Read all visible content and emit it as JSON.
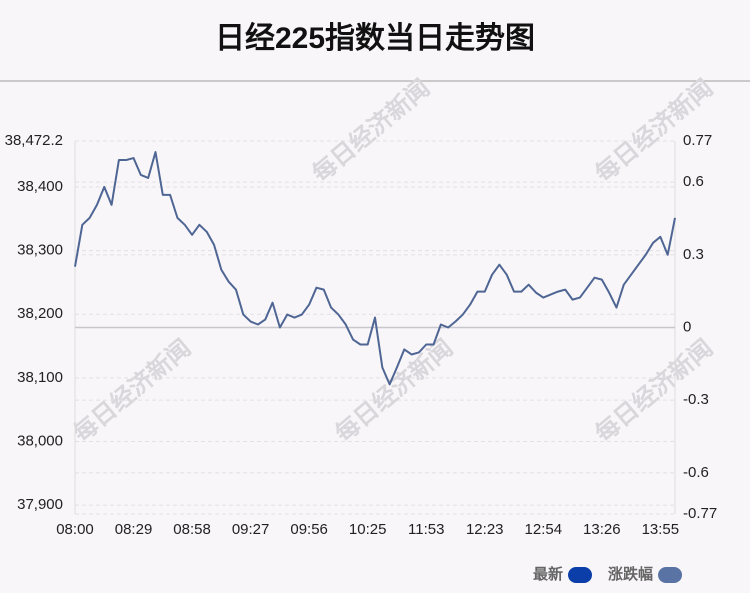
{
  "chart_data": {
    "type": "line",
    "title": "日经225指数当日走势图",
    "watermark": "每日经济新闻",
    "categories": [
      "08:00",
      null,
      null,
      null,
      null,
      null,
      null,
      null,
      "08:29",
      null,
      null,
      null,
      null,
      null,
      null,
      null,
      "08:58",
      null,
      null,
      null,
      null,
      null,
      null,
      null,
      "09:27",
      null,
      null,
      null,
      null,
      null,
      null,
      null,
      "09:56",
      null,
      null,
      null,
      null,
      null,
      null,
      null,
      "10:25",
      null,
      null,
      null,
      null,
      null,
      null,
      null,
      "11:53",
      null,
      null,
      null,
      null,
      null,
      null,
      null,
      "12:23",
      null,
      null,
      null,
      null,
      null,
      null,
      null,
      "12:54",
      null,
      null,
      null,
      null,
      null,
      null,
      null,
      "13:26",
      null,
      null,
      null,
      null,
      null,
      null,
      null,
      "13:55",
      null,
      null
    ],
    "series": [
      {
        "name": "最新",
        "color": "#4f6694",
        "values": [
          38274.6,
          38340.5,
          38351.4,
          38371.8,
          38400,
          38371.8,
          38442.3,
          38442.3,
          38445.4,
          38418.8,
          38414.1,
          38454.8,
          38387.5,
          38387.5,
          38351.4,
          38340.5,
          38324.8,
          38340.5,
          38329.5,
          38309.1,
          38269.9,
          38251.1,
          38238.6,
          38199.4,
          38188.5,
          38183.8,
          38191.6,
          38218.2,
          38179.1,
          38199.4,
          38194.7,
          38199.4,
          38215.1,
          38241.7,
          38238.6,
          38210.4,
          38199.4,
          38183.8,
          38160.2,
          38152.4,
          38152.4,
          38194.7,
          38116.4,
          38089.7,
          38116.4,
          38144.6,
          38136.7,
          38139.9,
          38152.4,
          38152.4,
          38183.8,
          38179.1,
          38188.5,
          38199.4,
          38215.1,
          38235.5,
          38235.5,
          38262.1,
          38277.8,
          38262.1,
          38235.5,
          38235.5,
          38246.4,
          38233.9,
          38226.1,
          38230.8,
          38235.5,
          38238.6,
          38222.9,
          38226.1,
          38241.7,
          38257.4,
          38254.3,
          38233.9,
          38210.4,
          38246.4,
          38262.1,
          38277.8,
          38293.4,
          38312.2,
          38321.6,
          38293.4,
          38351.4
        ]
      }
    ],
    "legend": [
      {
        "label": "最新",
        "color": "#0b3ea8"
      },
      {
        "label": "涨跌幅",
        "color": "#5a73a5"
      }
    ],
    "ylim": [
      37886,
      38472.2
    ],
    "yticks": [
      {
        "value": 37900,
        "label": "37,900"
      },
      {
        "value": 38000,
        "label": "38,000"
      },
      {
        "value": 38100,
        "label": "38,100"
      },
      {
        "value": 38200,
        "label": "38,200"
      },
      {
        "value": 38300,
        "label": "38,300"
      },
      {
        "value": 38400,
        "label": "38,400"
      },
      {
        "value": 38472.2,
        "label": "38,472.2"
      }
    ],
    "y2lim": [
      -0.77,
      0.77
    ],
    "y2ticks": [
      -0.77,
      -0.6,
      -0.3,
      0,
      0.3,
      0.6,
      0.77
    ],
    "grid": true
  }
}
